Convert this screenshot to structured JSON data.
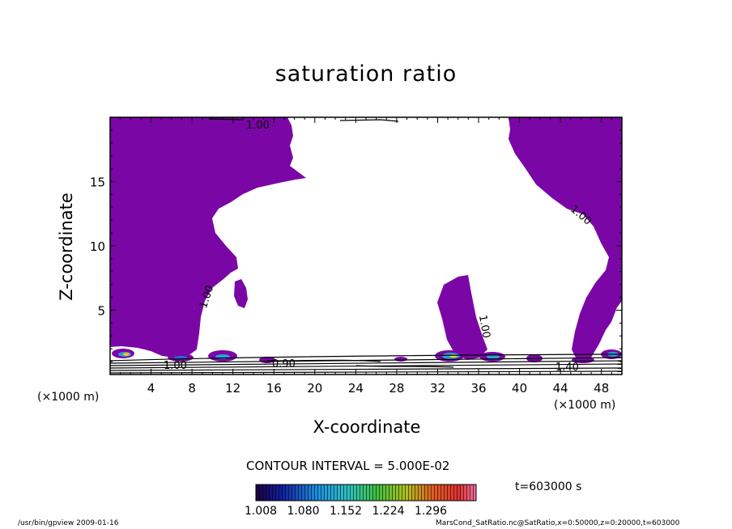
{
  "chart_data": {
    "type": "heatmap",
    "title": "saturation ratio",
    "xlabel": "X-coordinate",
    "ylabel": "Z-coordinate",
    "x_unit": "(×1000 m)",
    "xlim": [
      0,
      50
    ],
    "ylim": [
      0,
      20
    ],
    "x_ticks": [
      4,
      8,
      12,
      16,
      20,
      24,
      28,
      32,
      36,
      40,
      44,
      48
    ],
    "y_ticks": [
      5,
      10,
      15
    ],
    "contour_interval": "CONTOUR INTERVAL = 5.000E-02",
    "time_label": "t=603000 s",
    "fill_color": "#7b06a6",
    "colorbar": {
      "labels": [
        "1.008",
        "1.080",
        "1.152",
        "1.224",
        "1.296"
      ],
      "range": [
        1.008,
        1.296
      ]
    },
    "contour_labels": [
      {
        "text": "1.00",
        "x": 14.3,
        "z": 19.4
      },
      {
        "text": "1.00",
        "x": 45.0,
        "z": 11.8
      },
      {
        "text": "1.00",
        "x": 9.2,
        "z": 5.8
      },
      {
        "text": "1.00",
        "x": 36.2,
        "z": 3.8
      },
      {
        "text": "0.90",
        "x": 17.1,
        "z": 0.8
      },
      {
        "text": "1.00",
        "x": 7.0,
        "z": 0.4
      },
      {
        "text": "1.40",
        "x": 46.4,
        "z": 0.4
      }
    ]
  },
  "footer": {
    "left": "/usr/bin/gpview   2009-01-16",
    "right": "MarsCond_SatRatio.nc@SatRatio,x=0:50000,z=0:20000,t=603000"
  }
}
